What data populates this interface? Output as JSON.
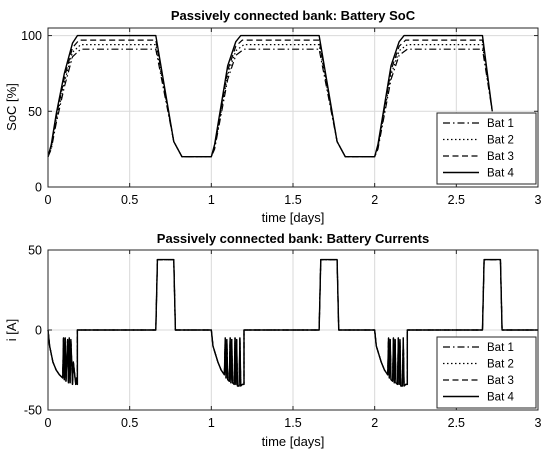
{
  "chart_data": [
    {
      "type": "line",
      "title": "Passively connected bank: Battery SoC",
      "xlabel": "time [days]",
      "ylabel": "SoC [%]",
      "xlim": [
        0,
        3
      ],
      "ylim": [
        0,
        105
      ],
      "xticks": [
        0,
        0.5,
        1,
        1.5,
        2,
        2.5,
        3
      ],
      "xtick_labels": [
        "0",
        "0.5",
        "1",
        "1.5",
        "2",
        "2.5",
        "3"
      ],
      "yticks": [
        0,
        50,
        100
      ],
      "ytick_labels": [
        "0",
        "50",
        "100"
      ],
      "grid": true,
      "legend_position": "bottom-right",
      "series": [
        {
          "name": "Bat 1",
          "line_style": "dash-dot",
          "x": [
            0,
            0.02,
            0.05,
            0.1,
            0.15,
            0.2,
            0.66,
            0.77,
            0.82,
            1.0,
            1.02,
            1.06,
            1.1,
            1.15,
            1.2,
            1.66,
            1.77,
            1.82,
            2.0,
            2.02,
            2.06,
            2.1,
            2.15,
            2.2,
            2.66,
            2.72
          ],
          "y": [
            20,
            25,
            42,
            66,
            86,
            91,
            91,
            30,
            20,
            20,
            25,
            48,
            71,
            87,
            91,
            91,
            30,
            20,
            20,
            25,
            48,
            71,
            87,
            91,
            91,
            50
          ]
        },
        {
          "name": "Bat 2",
          "line_style": "dotted",
          "x": [
            0,
            0.02,
            0.05,
            0.1,
            0.15,
            0.2,
            0.66,
            0.77,
            0.82,
            1.0,
            1.02,
            1.06,
            1.1,
            1.15,
            1.2,
            1.66,
            1.77,
            1.82,
            2.0,
            2.02,
            2.06,
            2.1,
            2.15,
            2.2,
            2.66,
            2.72
          ],
          "y": [
            20,
            26,
            44,
            69,
            89,
            94,
            94,
            30,
            20,
            20,
            26,
            50,
            74,
            90,
            94,
            94,
            30,
            20,
            20,
            26,
            50,
            74,
            90,
            94,
            94,
            50
          ]
        },
        {
          "name": "Bat 3",
          "line_style": "dashed",
          "x": [
            0,
            0.02,
            0.05,
            0.1,
            0.15,
            0.19,
            0.66,
            0.77,
            0.82,
            1.0,
            1.02,
            1.06,
            1.1,
            1.15,
            1.19,
            1.66,
            1.77,
            1.82,
            2.0,
            2.02,
            2.06,
            2.1,
            2.15,
            2.19,
            2.66,
            2.72
          ],
          "y": [
            20,
            27,
            46,
            72,
            92,
            97,
            97,
            30,
            20,
            20,
            27,
            52,
            77,
            93,
            97,
            97,
            30,
            20,
            20,
            27,
            52,
            77,
            93,
            97,
            97,
            50
          ]
        },
        {
          "name": "Bat 4",
          "line_style": "solid",
          "x": [
            0,
            0.02,
            0.05,
            0.1,
            0.15,
            0.18,
            0.66,
            0.77,
            0.82,
            1.0,
            1.02,
            1.06,
            1.1,
            1.15,
            1.18,
            1.66,
            1.77,
            1.82,
            2.0,
            2.02,
            2.06,
            2.1,
            2.15,
            2.18,
            2.66,
            2.72
          ],
          "y": [
            20,
            28,
            48,
            75,
            95,
            100,
            100,
            30,
            20,
            20,
            28,
            54,
            80,
            96,
            100,
            100,
            30,
            20,
            20,
            28,
            54,
            80,
            96,
            100,
            100,
            50
          ]
        }
      ]
    },
    {
      "type": "line",
      "title": "Passively connected bank: Battery Currents",
      "xlabel": "time [days]",
      "ylabel": "i [A]",
      "xlim": [
        0,
        3
      ],
      "ylim": [
        -50,
        50
      ],
      "xticks": [
        0,
        0.5,
        1,
        1.5,
        2,
        2.5,
        3
      ],
      "xtick_labels": [
        "0",
        "0.5",
        "1",
        "1.5",
        "2",
        "2.5",
        "3"
      ],
      "yticks": [
        -50,
        0,
        50
      ],
      "ytick_labels": [
        "-50",
        "0",
        "50"
      ],
      "grid": true,
      "legend_position": "bottom-right",
      "series": [
        {
          "name": "Bat 1",
          "line_style": "dash-dot",
          "x": [
            0,
            0.01,
            0.03,
            0.05,
            0.07,
            0.09,
            0.095,
            0.1,
            0.105,
            0.11,
            0.12,
            0.125,
            0.13,
            0.135,
            0.14,
            0.15,
            0.155,
            0.17,
            0.175,
            0.18,
            0.18,
            0.66,
            0.67,
            0.77,
            0.78,
            1.0,
            1.01,
            1.04,
            1.06,
            1.08,
            1.085,
            1.09,
            1.095,
            1.1,
            1.11,
            1.115,
            1.12,
            1.125,
            1.13,
            1.14,
            1.145,
            1.15,
            1.155,
            1.16,
            1.17,
            1.175,
            1.18,
            1.19,
            1.2,
            1.2,
            1.66,
            1.67,
            1.77,
            1.78,
            2.0,
            2.01,
            2.04,
            2.06,
            2.08,
            2.085,
            2.09,
            2.095,
            2.1,
            2.11,
            2.115,
            2.12,
            2.125,
            2.13,
            2.14,
            2.145,
            2.15,
            2.155,
            2.16,
            2.17,
            2.175,
            2.18,
            2.19,
            2.2,
            2.2,
            2.66,
            2.67,
            2.77,
            2.78,
            3.0
          ],
          "y": [
            0,
            -10,
            -20,
            -25,
            -28,
            -30,
            -5,
            -31,
            -5,
            -32,
            -6,
            -33,
            -5,
            -33,
            -6,
            -34,
            -20,
            -34,
            -30,
            -34,
            0,
            0,
            44,
            44,
            0,
            0,
            -10,
            -20,
            -25,
            -28,
            -5,
            -30,
            -6,
            -31,
            -32,
            -5,
            -33,
            -6,
            -33,
            -34,
            -5,
            -34,
            -6,
            -35,
            -35,
            -5,
            -35,
            -34,
            -34,
            0,
            0,
            44,
            44,
            0,
            0,
            -10,
            -20,
            -25,
            -28,
            -5,
            -30,
            -6,
            -31,
            -32,
            -5,
            -33,
            -6,
            -33,
            -34,
            -5,
            -34,
            -6,
            -35,
            -35,
            -5,
            -35,
            -34,
            -34,
            0,
            0,
            44,
            44,
            0,
            0
          ]
        },
        {
          "name": "Bat 2",
          "line_style": "dotted",
          "x": [
            0,
            0.01,
            0.03,
            0.05,
            0.07,
            0.09,
            0.095,
            0.1,
            0.105,
            0.11,
            0.12,
            0.125,
            0.13,
            0.135,
            0.14,
            0.15,
            0.155,
            0.17,
            0.175,
            0.18,
            0.18,
            0.66,
            0.67,
            0.77,
            0.78,
            1.0,
            1.01,
            1.04,
            1.06,
            1.08,
            1.085,
            1.09,
            1.095,
            1.1,
            1.11,
            1.115,
            1.12,
            1.125,
            1.13,
            1.14,
            1.145,
            1.15,
            1.155,
            1.16,
            1.17,
            1.175,
            1.18,
            1.19,
            1.2,
            1.2,
            1.66,
            1.67,
            1.77,
            1.78,
            2.0,
            2.01,
            2.04,
            2.06,
            2.08,
            2.085,
            2.09,
            2.095,
            2.1,
            2.11,
            2.115,
            2.12,
            2.125,
            2.13,
            2.14,
            2.145,
            2.15,
            2.155,
            2.16,
            2.17,
            2.175,
            2.18,
            2.19,
            2.2,
            2.2,
            2.66,
            2.67,
            2.77,
            2.78,
            3.0
          ],
          "y": [
            0,
            -10,
            -20,
            -25,
            -28,
            -30,
            -5,
            -31,
            -5,
            -32,
            -6,
            -33,
            -5,
            -33,
            -6,
            -34,
            -20,
            -34,
            -30,
            -34,
            0,
            0,
            44,
            44,
            0,
            0,
            -10,
            -20,
            -25,
            -28,
            -5,
            -30,
            -6,
            -31,
            -32,
            -5,
            -33,
            -6,
            -33,
            -34,
            -5,
            -34,
            -6,
            -35,
            -35,
            -5,
            -35,
            -34,
            -34,
            0,
            0,
            44,
            44,
            0,
            0,
            -10,
            -20,
            -25,
            -28,
            -5,
            -30,
            -6,
            -31,
            -32,
            -5,
            -33,
            -6,
            -33,
            -34,
            -5,
            -34,
            -6,
            -35,
            -35,
            -5,
            -35,
            -34,
            -34,
            0,
            0,
            44,
            44,
            0,
            0
          ]
        },
        {
          "name": "Bat 3",
          "line_style": "dashed",
          "x": [
            0,
            0.01,
            0.03,
            0.05,
            0.07,
            0.09,
            0.095,
            0.1,
            0.105,
            0.11,
            0.12,
            0.125,
            0.13,
            0.135,
            0.14,
            0.15,
            0.155,
            0.17,
            0.175,
            0.18,
            0.18,
            0.66,
            0.67,
            0.77,
            0.78,
            1.0,
            1.01,
            1.04,
            1.06,
            1.08,
            1.085,
            1.09,
            1.095,
            1.1,
            1.11,
            1.115,
            1.12,
            1.125,
            1.13,
            1.14,
            1.145,
            1.15,
            1.155,
            1.16,
            1.17,
            1.175,
            1.18,
            1.19,
            1.2,
            1.2,
            1.66,
            1.67,
            1.77,
            1.78,
            2.0,
            2.01,
            2.04,
            2.06,
            2.08,
            2.085,
            2.09,
            2.095,
            2.1,
            2.11,
            2.115,
            2.12,
            2.125,
            2.13,
            2.14,
            2.145,
            2.15,
            2.155,
            2.16,
            2.17,
            2.175,
            2.18,
            2.19,
            2.2,
            2.2,
            2.66,
            2.67,
            2.77,
            2.78,
            3.0
          ],
          "y": [
            0,
            -10,
            -20,
            -25,
            -28,
            -30,
            -5,
            -31,
            -5,
            -32,
            -6,
            -33,
            -5,
            -33,
            -6,
            -34,
            -20,
            -34,
            -30,
            -34,
            0,
            0,
            44,
            44,
            0,
            0,
            -10,
            -20,
            -25,
            -28,
            -5,
            -30,
            -6,
            -31,
            -32,
            -5,
            -33,
            -6,
            -33,
            -34,
            -5,
            -34,
            -6,
            -35,
            -35,
            -5,
            -35,
            -34,
            -34,
            0,
            0,
            44,
            44,
            0,
            0,
            -10,
            -20,
            -25,
            -28,
            -5,
            -30,
            -6,
            -31,
            -32,
            -5,
            -33,
            -6,
            -33,
            -34,
            -5,
            -34,
            -6,
            -35,
            -35,
            -5,
            -35,
            -34,
            -34,
            0,
            0,
            44,
            44,
            0,
            0
          ]
        },
        {
          "name": "Bat 4",
          "line_style": "solid",
          "x": [
            0,
            0.01,
            0.03,
            0.05,
            0.07,
            0.09,
            0.095,
            0.1,
            0.105,
            0.11,
            0.12,
            0.125,
            0.13,
            0.135,
            0.14,
            0.15,
            0.155,
            0.17,
            0.175,
            0.18,
            0.18,
            0.66,
            0.67,
            0.77,
            0.78,
            1.0,
            1.01,
            1.04,
            1.06,
            1.08,
            1.085,
            1.09,
            1.095,
            1.1,
            1.11,
            1.115,
            1.12,
            1.125,
            1.13,
            1.14,
            1.145,
            1.15,
            1.155,
            1.16,
            1.17,
            1.175,
            1.18,
            1.19,
            1.2,
            1.2,
            1.66,
            1.67,
            1.77,
            1.78,
            2.0,
            2.01,
            2.04,
            2.06,
            2.08,
            2.085,
            2.09,
            2.095,
            2.1,
            2.11,
            2.115,
            2.12,
            2.125,
            2.13,
            2.14,
            2.145,
            2.15,
            2.155,
            2.16,
            2.17,
            2.175,
            2.18,
            2.19,
            2.2,
            2.2,
            2.66,
            2.67,
            2.77,
            2.78,
            3.0
          ],
          "y": [
            0,
            -10,
            -20,
            -25,
            -28,
            -30,
            -5,
            -31,
            -5,
            -32,
            -6,
            -33,
            -5,
            -33,
            -6,
            -34,
            -20,
            -34,
            -30,
            -34,
            0,
            0,
            44,
            44,
            0,
            0,
            -10,
            -20,
            -25,
            -28,
            -5,
            -30,
            -6,
            -31,
            -32,
            -5,
            -33,
            -6,
            -33,
            -34,
            -5,
            -34,
            -6,
            -35,
            -35,
            -5,
            -35,
            -34,
            -34,
            0,
            0,
            44,
            44,
            0,
            0,
            -10,
            -20,
            -25,
            -28,
            -5,
            -30,
            -6,
            -31,
            -32,
            -5,
            -33,
            -6,
            -33,
            -34,
            -5,
            -34,
            -6,
            -35,
            -35,
            -5,
            -35,
            -34,
            -34,
            0,
            0,
            44,
            44,
            0,
            0
          ]
        }
      ]
    }
  ]
}
